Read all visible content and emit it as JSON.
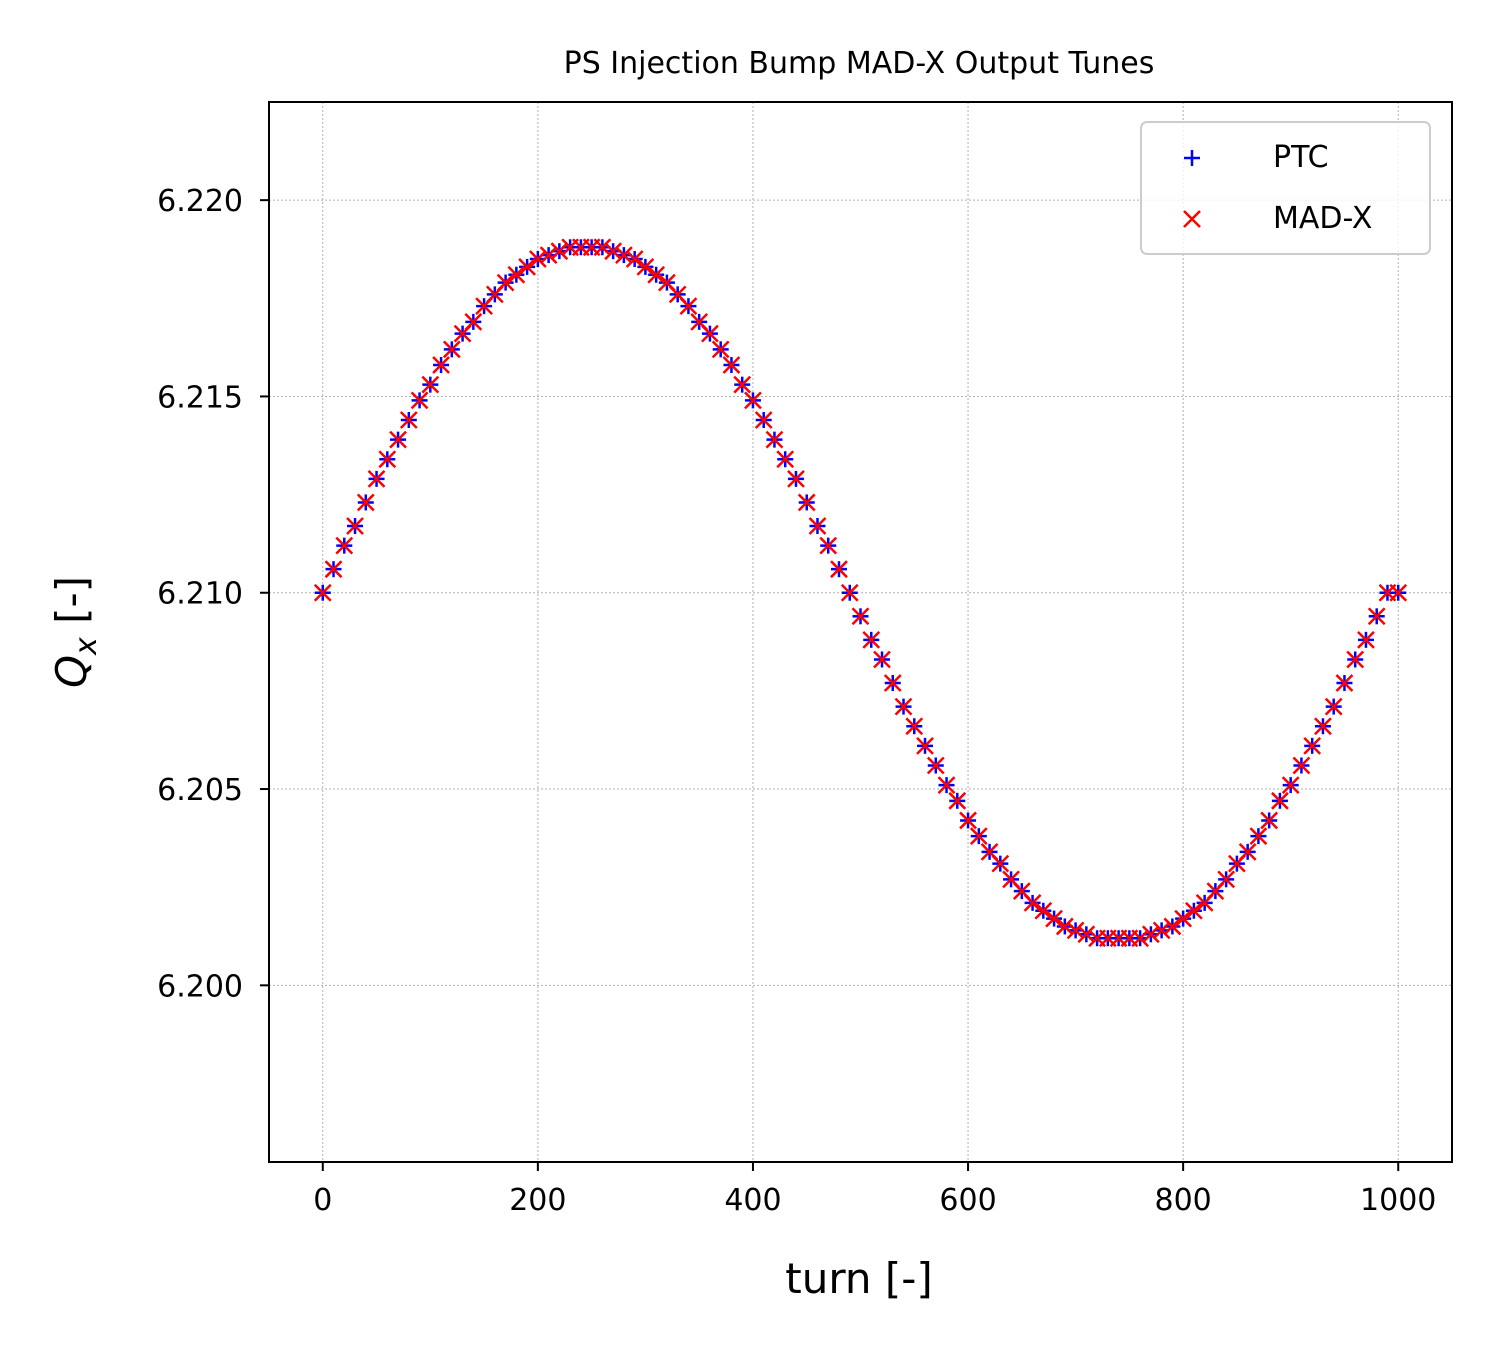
{
  "chart_data": {
    "type": "scatter",
    "title": "PS Injection Bump MAD-X Output Tunes",
    "xlabel": "turn [-]",
    "ylabel_main": "Q",
    "ylabel_sub": "x",
    "ylabel_suffix": " [-]",
    "xlim": [
      -50,
      1050
    ],
    "ylim": [
      6.1955,
      6.2225
    ],
    "xticks": [
      0,
      200,
      400,
      600,
      800,
      1000
    ],
    "xtick_labels": [
      "0",
      "200",
      "400",
      "600",
      "800",
      "1000"
    ],
    "yticks": [
      6.2,
      6.205,
      6.21,
      6.215,
      6.22
    ],
    "ytick_labels": [
      "6.200",
      "6.205",
      "6.210",
      "6.215",
      "6.220"
    ],
    "grid": true,
    "legend_position": "top-right",
    "series": [
      {
        "name": "PTC",
        "marker": "plus",
        "color": "#0000ff",
        "x": [
          0,
          10,
          20,
          30,
          40,
          50,
          60,
          70,
          80,
          90,
          100,
          110,
          120,
          130,
          140,
          150,
          160,
          170,
          180,
          190,
          200,
          210,
          220,
          230,
          240,
          250,
          260,
          270,
          280,
          290,
          300,
          310,
          320,
          330,
          340,
          350,
          360,
          370,
          380,
          390,
          400,
          410,
          420,
          430,
          440,
          450,
          460,
          470,
          480,
          490,
          500,
          510,
          520,
          530,
          540,
          550,
          560,
          570,
          580,
          590,
          600,
          610,
          620,
          630,
          640,
          650,
          660,
          670,
          680,
          690,
          700,
          710,
          720,
          730,
          740,
          750,
          760,
          770,
          780,
          790,
          800,
          810,
          820,
          830,
          840,
          850,
          860,
          870,
          880,
          890,
          900,
          910,
          920,
          930,
          940,
          950,
          960,
          970,
          980,
          990,
          1000
        ],
        "y": [
          6.21,
          6.2106,
          6.2112,
          6.2117,
          6.2123,
          6.2129,
          6.2134,
          6.2139,
          6.2144,
          6.2149,
          6.2153,
          6.2158,
          6.2162,
          6.2166,
          6.2169,
          6.2173,
          6.2176,
          6.2179,
          6.2181,
          6.2183,
          6.2185,
          6.2186,
          6.2187,
          6.2188,
          6.2188,
          6.2188,
          6.2188,
          6.2187,
          6.2186,
          6.2185,
          6.2183,
          6.2181,
          6.2179,
          6.2176,
          6.2173,
          6.2169,
          6.2166,
          6.2162,
          6.2158,
          6.2153,
          6.2149,
          6.2144,
          6.2139,
          6.2134,
          6.2129,
          6.2123,
          6.2117,
          6.2112,
          6.2106,
          6.21,
          6.2094,
          6.2088,
          6.2083,
          6.2077,
          6.2071,
          6.2066,
          6.2061,
          6.2056,
          6.2051,
          6.2047,
          6.2042,
          6.2038,
          6.2034,
          6.2031,
          6.2027,
          6.2024,
          6.2021,
          6.2019,
          6.2017,
          6.2015,
          6.2014,
          6.2013,
          6.2012,
          6.2012,
          6.2012,
          6.2012,
          6.2012,
          6.2013,
          6.2014,
          6.2015,
          6.2017,
          6.2019,
          6.2021,
          6.2024,
          6.2027,
          6.2031,
          6.2034,
          6.2038,
          6.2042,
          6.2047,
          6.2051,
          6.2056,
          6.2061,
          6.2066,
          6.2071,
          6.2077,
          6.2083,
          6.2088,
          6.2094,
          6.21,
          6.21
        ]
      },
      {
        "name": "MAD-X",
        "marker": "x",
        "color": "#ff0000",
        "x": [
          0,
          10,
          20,
          30,
          40,
          50,
          60,
          70,
          80,
          90,
          100,
          110,
          120,
          130,
          140,
          150,
          160,
          170,
          180,
          190,
          200,
          210,
          220,
          230,
          240,
          250,
          260,
          270,
          280,
          290,
          300,
          310,
          320,
          330,
          340,
          350,
          360,
          370,
          380,
          390,
          400,
          410,
          420,
          430,
          440,
          450,
          460,
          470,
          480,
          490,
          500,
          510,
          520,
          530,
          540,
          550,
          560,
          570,
          580,
          590,
          600,
          610,
          620,
          630,
          640,
          650,
          660,
          670,
          680,
          690,
          700,
          710,
          720,
          730,
          740,
          750,
          760,
          770,
          780,
          790,
          800,
          810,
          820,
          830,
          840,
          850,
          860,
          870,
          880,
          890,
          900,
          910,
          920,
          930,
          940,
          950,
          960,
          970,
          980,
          990,
          1000
        ],
        "y": [
          6.21,
          6.2106,
          6.2112,
          6.2117,
          6.2123,
          6.2129,
          6.2134,
          6.2139,
          6.2144,
          6.2149,
          6.2153,
          6.2158,
          6.2162,
          6.2166,
          6.2169,
          6.2173,
          6.2176,
          6.2179,
          6.2181,
          6.2183,
          6.2185,
          6.2186,
          6.2187,
          6.2188,
          6.2188,
          6.2188,
          6.2188,
          6.2187,
          6.2186,
          6.2185,
          6.2183,
          6.2181,
          6.2179,
          6.2176,
          6.2173,
          6.2169,
          6.2166,
          6.2162,
          6.2158,
          6.2153,
          6.2149,
          6.2144,
          6.2139,
          6.2134,
          6.2129,
          6.2123,
          6.2117,
          6.2112,
          6.2106,
          6.21,
          6.2094,
          6.2088,
          6.2083,
          6.2077,
          6.2071,
          6.2066,
          6.2061,
          6.2056,
          6.2051,
          6.2047,
          6.2042,
          6.2038,
          6.2034,
          6.2031,
          6.2027,
          6.2024,
          6.2021,
          6.2019,
          6.2017,
          6.2015,
          6.2014,
          6.2013,
          6.2012,
          6.2012,
          6.2012,
          6.2012,
          6.2012,
          6.2013,
          6.2014,
          6.2015,
          6.2017,
          6.2019,
          6.2021,
          6.2024,
          6.2027,
          6.2031,
          6.2034,
          6.2038,
          6.2042,
          6.2047,
          6.2051,
          6.2056,
          6.2061,
          6.2066,
          6.2071,
          6.2077,
          6.2083,
          6.2088,
          6.2094,
          6.21,
          6.21
        ]
      }
    ]
  }
}
